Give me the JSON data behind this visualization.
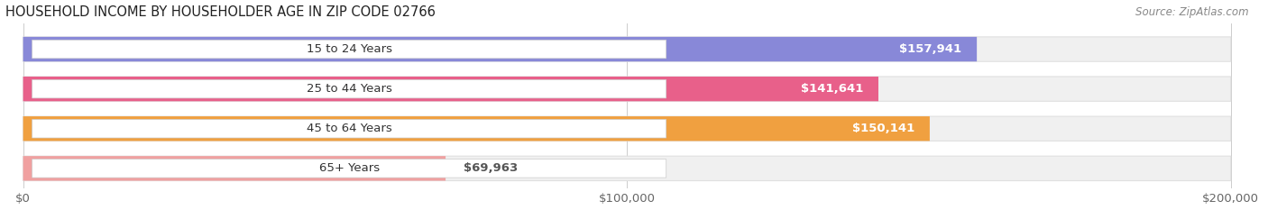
{
  "title": "HOUSEHOLD INCOME BY HOUSEHOLDER AGE IN ZIP CODE 02766",
  "source": "Source: ZipAtlas.com",
  "categories": [
    "15 to 24 Years",
    "25 to 44 Years",
    "45 to 64 Years",
    "65+ Years"
  ],
  "values": [
    157941,
    141641,
    150141,
    69963
  ],
  "bar_colors": [
    "#8888d8",
    "#e8608a",
    "#f0a040",
    "#f0a0a0"
  ],
  "value_labels": [
    "$157,941",
    "$141,641",
    "$150,141",
    "$69,963"
  ],
  "xlim_data": 200000,
  "xticks": [
    0,
    100000,
    200000
  ],
  "xtick_labels": [
    "$0",
    "$100,000",
    "$200,000"
  ],
  "label_font_size": 9.5,
  "title_font_size": 10.5,
  "source_font_size": 8.5,
  "bar_height": 0.62,
  "background_color": "#ffffff",
  "grid_color": "#cccccc",
  "bar_bg_color": "#f0f0f0",
  "bar_bg_edge_color": "#e0e0e0"
}
